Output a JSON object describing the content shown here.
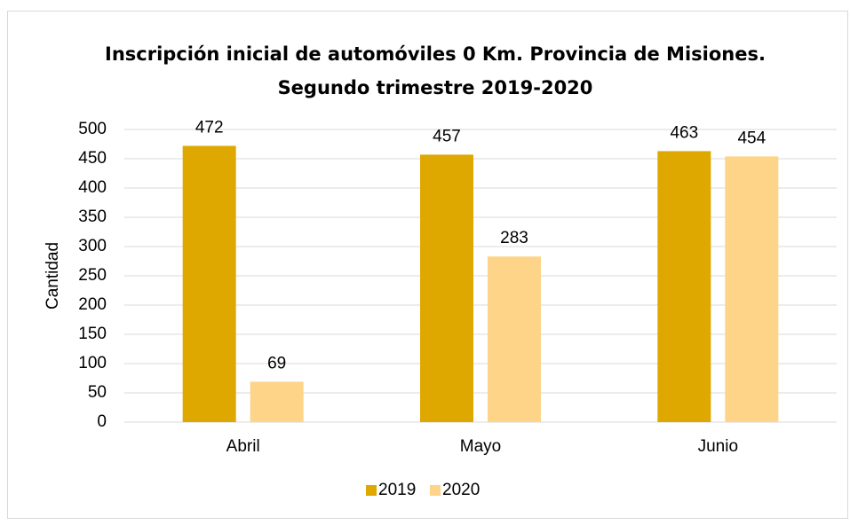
{
  "chart_data": {
    "type": "bar",
    "title": [
      "Inscripción inicial de automóviles 0 Km. Provincia de Misiones.",
      "Segundo trimestre 2019-2020"
    ],
    "y_label": "Cantidad",
    "categories": [
      "Abril",
      "Mayo",
      "Junio"
    ],
    "series": [
      {
        "name": "2019",
        "color": "#dea800",
        "values": [
          472,
          457,
          463
        ]
      },
      {
        "name": "2020",
        "color": "#fdd488",
        "values": [
          69,
          283,
          454
        ]
      }
    ],
    "ylim": [
      0,
      500
    ],
    "yticks": [
      0,
      50,
      100,
      150,
      200,
      250,
      300,
      350,
      400,
      450,
      500
    ],
    "grid": true,
    "legend": "bottom"
  }
}
